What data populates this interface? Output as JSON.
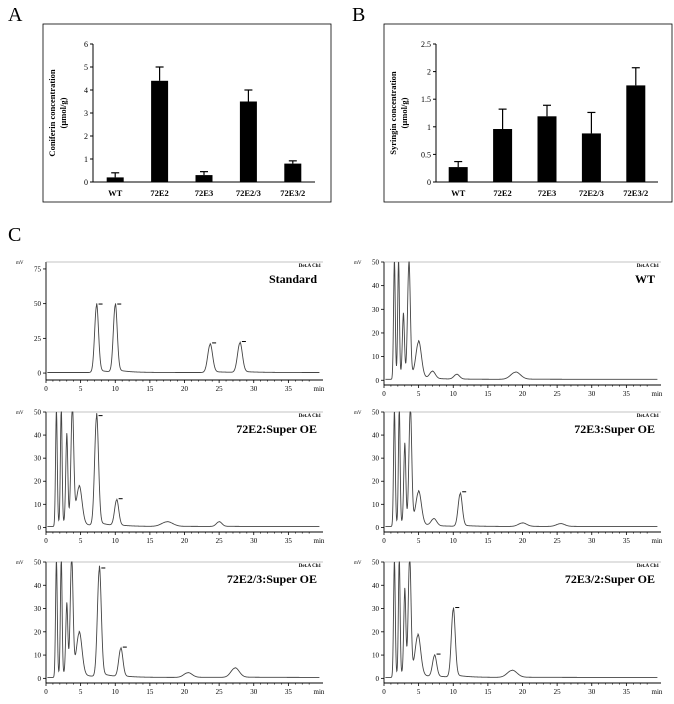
{
  "panels": {
    "A": "A",
    "B": "B",
    "C": "C"
  },
  "chart_data": [
    {
      "type": "bar",
      "panel": "A",
      "categories": [
        "WT",
        "72E2",
        "72E3",
        "72E2/3",
        "72E3/2"
      ],
      "values": [
        0.2,
        4.4,
        0.3,
        3.5,
        0.8
      ],
      "errors": [
        0.2,
        0.6,
        0.15,
        0.5,
        0.12
      ],
      "ylabel_line1": "Coniferin concentration",
      "ylabel_line2": "(µmol/g)",
      "ylim": [
        0,
        6
      ],
      "ytick_labels": [
        "0",
        "1",
        "2",
        "3",
        "4",
        "5",
        "6"
      ],
      "bar_color": "#000000"
    },
    {
      "type": "bar",
      "panel": "B",
      "categories": [
        "WT",
        "72E2",
        "72E3",
        "72E2/3",
        "72E3/2"
      ],
      "values": [
        0.27,
        0.96,
        1.19,
        0.88,
        1.75
      ],
      "errors": [
        0.1,
        0.36,
        0.2,
        0.38,
        0.32
      ],
      "ylabel_line1": "Syringin concentration",
      "ylabel_line2": "(µmol/g)",
      "ylim": [
        0,
        2.5
      ],
      "ytick_labels": [
        "0",
        "0.5",
        "1",
        "1.5",
        "2",
        "2.5"
      ],
      "bar_color": "#000000"
    },
    {
      "type": "line",
      "panel": "C",
      "title": "Standard",
      "header": "Det.A Ch1",
      "yunit": "mV",
      "ylim": [
        -5,
        80
      ],
      "ytick_values": [
        0,
        25,
        50,
        75
      ],
      "xlim": [
        0,
        40
      ],
      "xtick_labels": [
        "0",
        "5",
        "10",
        "15",
        "20",
        "25",
        "30",
        "35",
        "min"
      ],
      "peaks": [
        {
          "t": 7.3,
          "h": 48,
          "w": 0.28
        },
        {
          "t": 10.0,
          "h": 48,
          "w": 0.28
        },
        {
          "t": 23.7,
          "h": 20,
          "w": 0.35
        },
        {
          "t": 28.0,
          "h": 21,
          "w": 0.35
        }
      ]
    },
    {
      "type": "line",
      "panel": "C",
      "title": "WT",
      "header": "Det.A Ch1",
      "yunit": "mV",
      "ylim": [
        -2,
        50
      ],
      "ytick_values": [
        0,
        10,
        20,
        30,
        40,
        50
      ],
      "xlim": [
        0,
        40
      ],
      "xtick_labels": [
        "0",
        "5",
        "10",
        "15",
        "20",
        "25",
        "30",
        "35",
        "min"
      ],
      "peaks": [
        {
          "t": 1.5,
          "h": 50,
          "w": 0.12
        },
        {
          "t": 2.1,
          "h": 49,
          "w": 0.12
        },
        {
          "t": 2.8,
          "h": 26,
          "w": 0.15
        },
        {
          "t": 3.6,
          "h": 48,
          "w": 0.2
        },
        {
          "t": 5.0,
          "h": 15,
          "w": 0.4
        },
        {
          "t": 7.0,
          "h": 3,
          "w": 0.4
        },
        {
          "t": 10.5,
          "h": 2,
          "w": 0.4
        },
        {
          "t": 19.0,
          "h": 3,
          "w": 0.7
        }
      ]
    },
    {
      "type": "line",
      "panel": "C",
      "title": "72E2:Super OE",
      "header": "Det.A Ch1",
      "yunit": "mV",
      "ylim": [
        -2,
        50
      ],
      "ytick_values": [
        0,
        10,
        20,
        30,
        40,
        50
      ],
      "xlim": [
        0,
        40
      ],
      "xtick_labels": [
        "0",
        "5",
        "10",
        "15",
        "20",
        "25",
        "30",
        "35",
        "min"
      ],
      "peaks": [
        {
          "t": 1.5,
          "h": 50,
          "w": 0.12
        },
        {
          "t": 2.2,
          "h": 50,
          "w": 0.12
        },
        {
          "t": 3.0,
          "h": 38,
          "w": 0.15
        },
        {
          "t": 3.8,
          "h": 50,
          "w": 0.2
        },
        {
          "t": 4.8,
          "h": 16,
          "w": 0.4
        },
        {
          "t": 7.3,
          "h": 47,
          "w": 0.28
        },
        {
          "t": 10.2,
          "h": 11,
          "w": 0.3
        },
        {
          "t": 17.5,
          "h": 2,
          "w": 0.8
        },
        {
          "t": 25.0,
          "h": 2,
          "w": 0.4
        }
      ]
    },
    {
      "type": "line",
      "panel": "C",
      "title": "72E3:Super OE",
      "header": "Det.A Ch1",
      "yunit": "mV",
      "ylim": [
        -2,
        50
      ],
      "ytick_values": [
        0,
        10,
        20,
        30,
        40,
        50
      ],
      "xlim": [
        0,
        40
      ],
      "xtick_labels": [
        "0",
        "5",
        "10",
        "15",
        "20",
        "25",
        "30",
        "35",
        "min"
      ],
      "peaks": [
        {
          "t": 1.5,
          "h": 50,
          "w": 0.12
        },
        {
          "t": 2.2,
          "h": 50,
          "w": 0.12
        },
        {
          "t": 3.0,
          "h": 34,
          "w": 0.15
        },
        {
          "t": 3.8,
          "h": 50,
          "w": 0.2
        },
        {
          "t": 5.0,
          "h": 14,
          "w": 0.4
        },
        {
          "t": 7.2,
          "h": 3,
          "w": 0.4
        },
        {
          "t": 11.0,
          "h": 14,
          "w": 0.3
        },
        {
          "t": 20.0,
          "h": 1.5,
          "w": 0.6
        },
        {
          "t": 25.5,
          "h": 1.2,
          "w": 0.6
        }
      ]
    },
    {
      "type": "line",
      "panel": "C",
      "title": "72E2/3:Super OE",
      "header": "Det.A Ch1",
      "yunit": "mV",
      "ylim": [
        -2,
        50
      ],
      "ytick_values": [
        0,
        10,
        20,
        30,
        40,
        50
      ],
      "xlim": [
        0,
        40
      ],
      "xtick_labels": [
        "0",
        "5",
        "10",
        "15",
        "20",
        "25",
        "30",
        "35",
        "min"
      ],
      "peaks": [
        {
          "t": 1.5,
          "h": 50,
          "w": 0.12
        },
        {
          "t": 2.2,
          "h": 50,
          "w": 0.12
        },
        {
          "t": 3.0,
          "h": 30,
          "w": 0.15
        },
        {
          "t": 3.7,
          "h": 50,
          "w": 0.2
        },
        {
          "t": 4.8,
          "h": 18,
          "w": 0.4
        },
        {
          "t": 7.7,
          "h": 46,
          "w": 0.28
        },
        {
          "t": 10.8,
          "h": 12,
          "w": 0.3
        },
        {
          "t": 20.5,
          "h": 2,
          "w": 0.6
        },
        {
          "t": 27.3,
          "h": 4,
          "w": 0.6
        }
      ]
    },
    {
      "type": "line",
      "panel": "C",
      "title": "72E3/2:Super OE",
      "header": "Det.A Ch1",
      "yunit": "mV",
      "ylim": [
        -2,
        50
      ],
      "ytick_values": [
        0,
        10,
        20,
        30,
        40,
        50
      ],
      "xlim": [
        0,
        40
      ],
      "xtick_labels": [
        "0",
        "5",
        "10",
        "15",
        "20",
        "25",
        "30",
        "35",
        "min"
      ],
      "peaks": [
        {
          "t": 1.5,
          "h": 50,
          "w": 0.12
        },
        {
          "t": 2.2,
          "h": 50,
          "w": 0.12
        },
        {
          "t": 3.0,
          "h": 36,
          "w": 0.15
        },
        {
          "t": 3.7,
          "h": 50,
          "w": 0.2
        },
        {
          "t": 4.9,
          "h": 17,
          "w": 0.4
        },
        {
          "t": 7.3,
          "h": 9,
          "w": 0.3
        },
        {
          "t": 10.0,
          "h": 29,
          "w": 0.28
        },
        {
          "t": 18.5,
          "h": 3,
          "w": 0.7
        }
      ]
    }
  ]
}
